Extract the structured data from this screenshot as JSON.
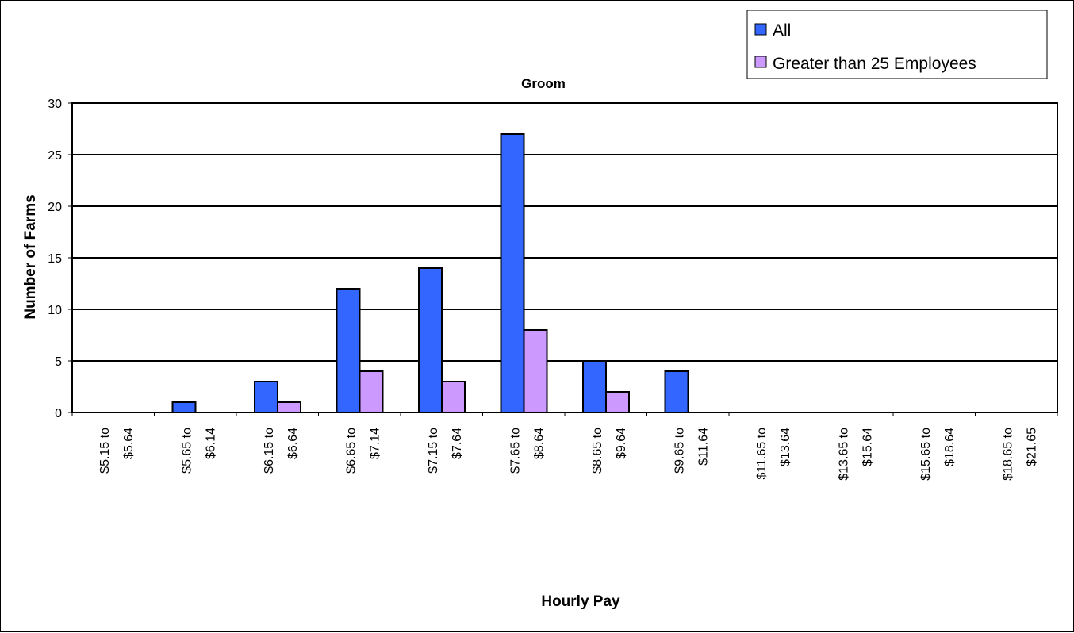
{
  "chart_data": {
    "type": "bar",
    "title": "Groom",
    "xlabel": "Hourly Pay",
    "ylabel": "Number of Farms",
    "ylim": [
      0,
      30
    ],
    "yticks": [
      0,
      5,
      10,
      15,
      20,
      25,
      30
    ],
    "grid": true,
    "legend_position": "top-right",
    "categories": [
      [
        "$5.15 to",
        "$5.64"
      ],
      [
        "$5.65 to",
        "$6.14"
      ],
      [
        "$6.15 to",
        "$6.64"
      ],
      [
        "$6.65 to",
        "$7.14"
      ],
      [
        "$7.15 to",
        "$7.64"
      ],
      [
        "$7.65 to",
        "$8.64"
      ],
      [
        "$8.65 to",
        "$9.64"
      ],
      [
        "$9.65 to",
        "$11.64"
      ],
      [
        "$11.65 to",
        "$13.64"
      ],
      [
        "$13.65 to",
        "$15.64"
      ],
      [
        "$15.65 to",
        "$18.64"
      ],
      [
        "$18.65 to",
        "$21.65"
      ]
    ],
    "series": [
      {
        "name": "All",
        "color": "#3366ff",
        "values": [
          0,
          1,
          3,
          12,
          14,
          27,
          5,
          4,
          0,
          0,
          0,
          0
        ]
      },
      {
        "name": "Greater than 25 Employees",
        "color": "#cc99ff",
        "values": [
          0,
          0,
          1,
          4,
          3,
          8,
          2,
          0,
          0,
          0,
          0,
          0
        ]
      }
    ]
  }
}
